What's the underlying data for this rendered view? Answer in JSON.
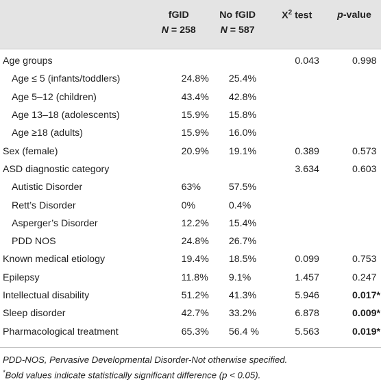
{
  "header": {
    "col1_name": "fGID",
    "col1_n_label": "N",
    "col1_n_value": "= 258",
    "col2_name": "No fGID",
    "col2_n_label": "N",
    "col2_n_value": "= 587",
    "col3_name": "X",
    "col3_sup": "2",
    "col3_suffix": " test",
    "col4_name_italic": "p",
    "col4_name_rest": "-value"
  },
  "rows": [
    {
      "label": "Age groups",
      "indent": false,
      "fgid": "",
      "nofgid": "",
      "x2": "0.043",
      "p": "0.998",
      "bold": false
    },
    {
      "label": "Age ≤ 5 (infants/toddlers)",
      "indent": true,
      "fgid": "24.8%",
      "nofgid": "25.4%",
      "x2": "",
      "p": "",
      "bold": false
    },
    {
      "label": "Age 5–12 (children)",
      "indent": true,
      "fgid": "43.4%",
      "nofgid": "42.8%",
      "x2": "",
      "p": "",
      "bold": false
    },
    {
      "label": "Age 13–18 (adolescents)",
      "indent": true,
      "fgid": "15.9%",
      "nofgid": "15.8%",
      "x2": "",
      "p": "",
      "bold": false
    },
    {
      "label": "Age ≥18 (adults)",
      "indent": true,
      "fgid": "15.9%",
      "nofgid": "16.0%",
      "x2": "",
      "p": "",
      "bold": false
    },
    {
      "label": "Sex (female)",
      "indent": false,
      "fgid": "20.9%",
      "nofgid": "19.1%",
      "x2": "0.389",
      "p": "0.573",
      "bold": false
    },
    {
      "label": "ASD diagnostic category",
      "indent": false,
      "fgid": "",
      "nofgid": "",
      "x2": "3.634",
      "p": "0.603",
      "bold": false
    },
    {
      "label": "Autistic Disorder",
      "indent": true,
      "fgid": "63%",
      "nofgid": "57.5%",
      "x2": "",
      "p": "",
      "bold": false
    },
    {
      "label": "Rett’s Disorder",
      "indent": true,
      "fgid": "0%",
      "nofgid": "0.4%",
      "x2": "",
      "p": "",
      "bold": false
    },
    {
      "label": "Asperger’s Disorder",
      "indent": true,
      "fgid": "12.2%",
      "nofgid": "15.4%",
      "x2": "",
      "p": "",
      "bold": false
    },
    {
      "label": "PDD NOS",
      "indent": true,
      "fgid": "24.8%",
      "nofgid": "26.7%",
      "x2": "",
      "p": "",
      "bold": false
    },
    {
      "label": "Known medical etiology",
      "indent": false,
      "fgid": "19.4%",
      "nofgid": "18.5%",
      "x2": "0.099",
      "p": "0.753",
      "bold": false
    },
    {
      "label": "Epilepsy",
      "indent": false,
      "fgid": "11.8%",
      "nofgid": "9.1%",
      "x2": "1.457",
      "p": "0.247",
      "bold": false
    },
    {
      "label": "Intellectual disability",
      "indent": false,
      "fgid": "51.2%",
      "nofgid": "41.3%",
      "x2": "5.946",
      "p": "0.017*",
      "bold": true
    },
    {
      "label": "Sleep disorder",
      "indent": false,
      "fgid": "42.7%",
      "nofgid": "33.2%",
      "x2": "6.878",
      "p": "0.009*",
      "bold": true
    },
    {
      "label": "Pharmacological treatment",
      "indent": false,
      "fgid": "65.3%",
      "nofgid": "56.4 %",
      "x2": "5.563",
      "p": "0.019*",
      "bold": true
    }
  ],
  "notes": {
    "line1": "PDD-NOS, Pervasive Developmental Disorder-Not otherwise specified.",
    "line2_sup": "*",
    "line2": "Bold values indicate statistically significant difference (p < 0.05)."
  }
}
